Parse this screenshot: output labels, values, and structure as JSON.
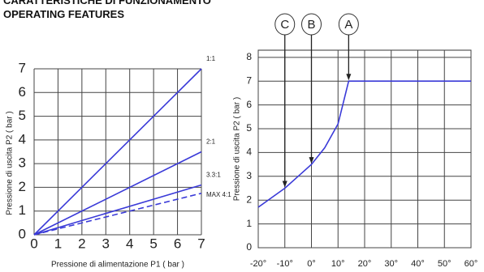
{
  "header": {
    "lines": [
      "CARATTERISTICHE DI FUNZIONAMENTO",
      "OPERATING FEATURES"
    ]
  },
  "chart_data": [
    {
      "type": "line",
      "x_label": "Pressione di alimentazione  P1 ( bar )",
      "y_label": "Pressione di uscita P2 ( bar )",
      "x": [
        0,
        7
      ],
      "series": [
        {
          "name": "1:1",
          "color": "#3a3ad8",
          "values": [
            0,
            7
          ],
          "dashed": false
        },
        {
          "name": "2:1",
          "color": "#3a3ad8",
          "values": [
            0,
            3.5
          ],
          "dashed": false
        },
        {
          "name": "3.3:1",
          "color": "#3a3ad8",
          "values": [
            0,
            2.1
          ],
          "dashed": false
        },
        {
          "name": "MAX 4:1",
          "color": "#3a3ad8",
          "values": [
            0,
            1.75
          ],
          "dashed": true
        }
      ],
      "xlim": [
        0,
        7
      ],
      "ylim": [
        0,
        7
      ],
      "xticks": [
        0,
        1,
        2,
        3,
        4,
        5,
        6,
        7
      ],
      "yticks": [
        0,
        1,
        2,
        3,
        4,
        5,
        6,
        7
      ],
      "grid": true
    },
    {
      "type": "line",
      "y_label": "Pressione di uscita P2 ( bar )",
      "x": [
        -20,
        -15,
        -10,
        -5,
        0,
        5,
        10,
        14,
        60
      ],
      "series": [
        {
          "color": "#3a3ad8",
          "values": [
            1.7,
            2.1,
            2.5,
            3.0,
            3.5,
            4.2,
            5.2,
            7,
            7
          ],
          "dashed": false
        }
      ],
      "xlim": [
        -20,
        60
      ],
      "ylim": [
        0,
        8.3
      ],
      "xticks": [
        {
          "value": -20,
          "label": "-20°"
        },
        {
          "value": -10,
          "label": "-10°"
        },
        {
          "value": 0,
          "label": "0°"
        },
        {
          "value": 10,
          "label": "10°"
        },
        {
          "value": 20,
          "label": "20°"
        },
        {
          "value": 30,
          "label": "30°"
        },
        {
          "value": 40,
          "label": "40°"
        },
        {
          "value": 50,
          "label": "50°"
        },
        {
          "value": 60,
          "label": "60°"
        }
      ],
      "yticks": [
        0,
        1,
        2,
        3,
        4,
        5,
        6,
        7,
        8
      ],
      "grid": true,
      "annotations": [
        {
          "label": "C",
          "x": -10,
          "y": 2.5
        },
        {
          "label": "B",
          "x": 0,
          "y": 3.5
        },
        {
          "label": "A",
          "x": 14,
          "y": 7
        }
      ]
    }
  ]
}
